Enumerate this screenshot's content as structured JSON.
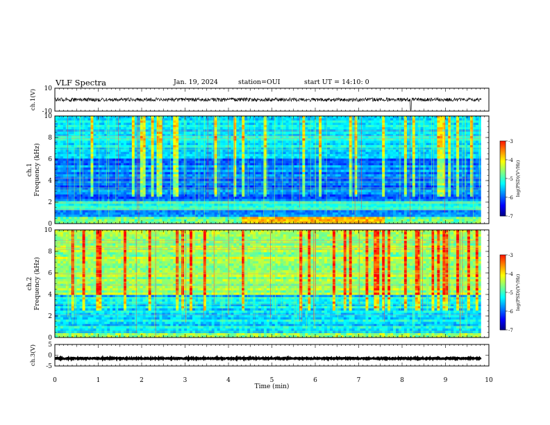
{
  "header": {
    "title": "VLF Spectra",
    "date": "Jan. 19, 2024",
    "station": "station=OUI",
    "start_ut": "start UT =  14:10: 0"
  },
  "chart_data": {
    "type": "heatmap",
    "time_axis": {
      "label": "Time (min)",
      "range": [
        0,
        10
      ],
      "ticks": [
        "0",
        "1",
        "2",
        "3",
        "4",
        "5",
        "6",
        "7",
        "8",
        "9",
        "10"
      ]
    },
    "panels": [
      {
        "id": "ch1-waveform",
        "type": "line",
        "ylabel": "ch.1(V)",
        "ylim": [
          -10,
          10
        ],
        "y_tick_labels": [
          "10",
          "-10"
        ],
        "baseline": 0,
        "note_spike_at_min": 8.2
      },
      {
        "id": "ch1-spectrogram",
        "type": "heatmap",
        "ylabel_line1": "ch.1",
        "ylabel_line2": "Frequency (kHz)",
        "ylim": [
          0,
          10
        ],
        "y_tick_labels": [
          "0",
          "2",
          "4",
          "6",
          "8",
          "10"
        ],
        "colorbar": {
          "label": "log(PSD)(V²/Hz)",
          "range": [
            -7,
            -3
          ],
          "ticks": [
            "-3",
            "-4",
            "-5",
            "-6",
            "-7"
          ]
        }
      },
      {
        "id": "ch2-spectrogram",
        "type": "heatmap",
        "ylabel_line1": "ch.2",
        "ylabel_line2": "Frequency (kHz)",
        "ylim": [
          0,
          10
        ],
        "y_tick_labels": [
          "0",
          "2",
          "4",
          "6",
          "8",
          "10"
        ],
        "colorbar": {
          "label": "log(PSD)(V²/Hz)",
          "range": [
            -7,
            -3
          ],
          "ticks": [
            "-3",
            "-4",
            "-5",
            "-6",
            "-7"
          ]
        }
      },
      {
        "id": "ch3-waveform",
        "type": "line",
        "ylabel": "ch.3(V)",
        "ylim": [
          -5,
          5
        ],
        "y_tick_labels": [
          "5",
          "0",
          "-5"
        ],
        "baseline": -1.5
      }
    ],
    "colors": {
      "colormap": [
        "#000080",
        "#0000ff",
        "#0080ff",
        "#00ffff",
        "#80ff80",
        "#ffff00",
        "#ff8000",
        "#ff0000",
        "#ffffff"
      ]
    }
  }
}
